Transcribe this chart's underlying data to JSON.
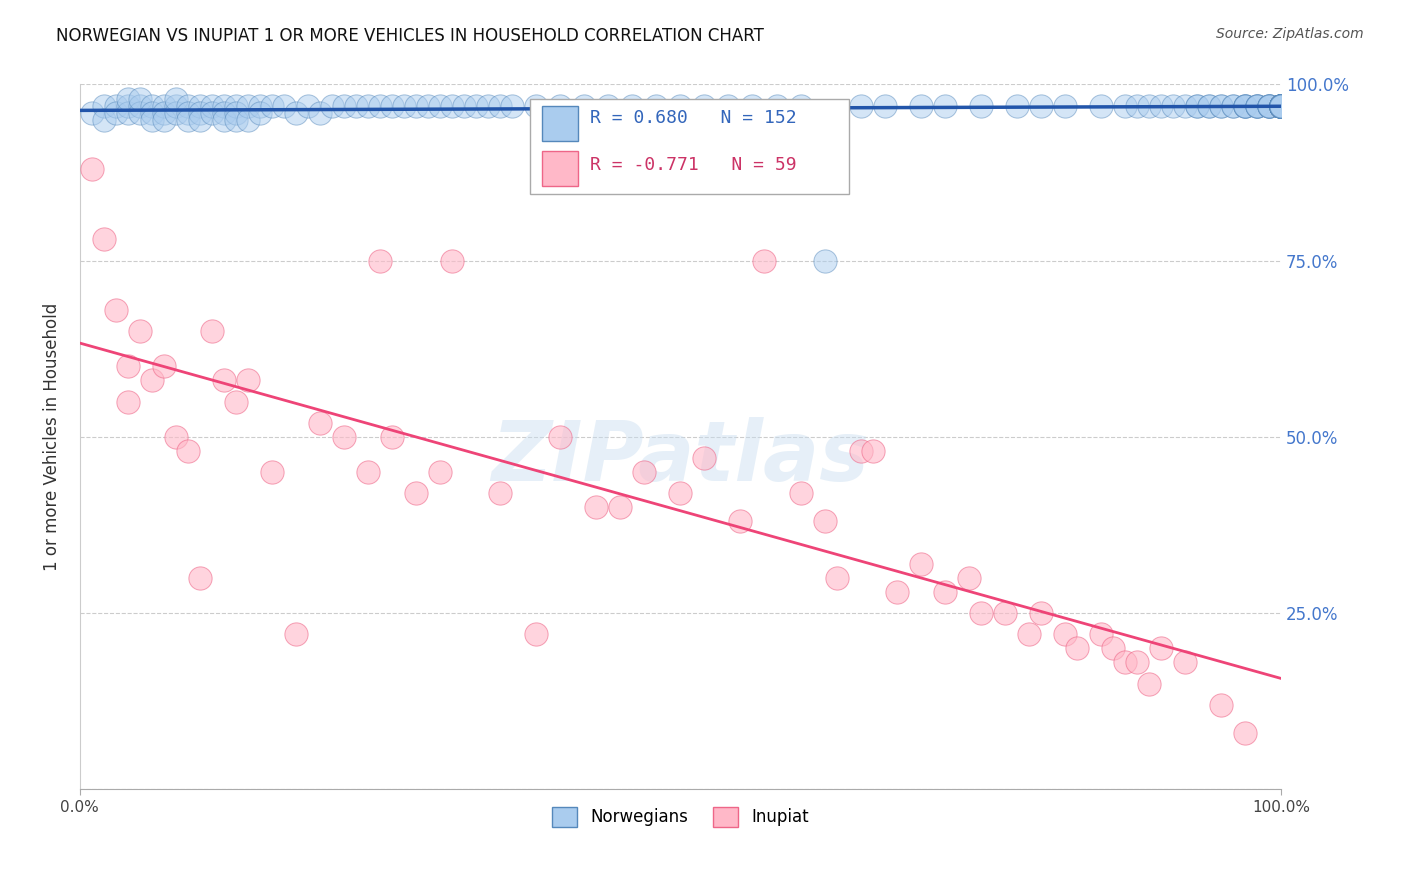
{
  "title": "NORWEGIAN VS INUPIAT 1 OR MORE VEHICLES IN HOUSEHOLD CORRELATION CHART",
  "source": "Source: ZipAtlas.com",
  "ylabel": "1 or more Vehicles in Household",
  "xlim": [
    0.0,
    1.0
  ],
  "ylim": [
    0.0,
    1.0
  ],
  "norwegian_R": 0.68,
  "norwegian_N": 152,
  "inupiat_R": -0.771,
  "inupiat_N": 59,
  "norwegian_color": "#aaccee",
  "norwegian_edge_color": "#5588bb",
  "inupiat_color": "#ffb8c8",
  "inupiat_edge_color": "#ee6688",
  "norwegian_line_color": "#2255aa",
  "inupiat_line_color": "#ee4477",
  "watermark": "ZIPatlas",
  "background_color": "#ffffff",
  "grid_color": "#cccccc",
  "norwegian_scatter_x": [
    0.01,
    0.02,
    0.02,
    0.03,
    0.03,
    0.04,
    0.04,
    0.04,
    0.05,
    0.05,
    0.05,
    0.06,
    0.06,
    0.06,
    0.07,
    0.07,
    0.07,
    0.08,
    0.08,
    0.08,
    0.09,
    0.09,
    0.09,
    0.1,
    0.1,
    0.1,
    0.11,
    0.11,
    0.12,
    0.12,
    0.12,
    0.13,
    0.13,
    0.13,
    0.14,
    0.14,
    0.15,
    0.15,
    0.16,
    0.17,
    0.18,
    0.19,
    0.2,
    0.21,
    0.22,
    0.23,
    0.24,
    0.25,
    0.26,
    0.27,
    0.28,
    0.29,
    0.3,
    0.31,
    0.32,
    0.33,
    0.34,
    0.35,
    0.36,
    0.38,
    0.4,
    0.42,
    0.44,
    0.46,
    0.48,
    0.5,
    0.52,
    0.54,
    0.56,
    0.58,
    0.6,
    0.62,
    0.65,
    0.67,
    0.7,
    0.72,
    0.75,
    0.78,
    0.8,
    0.82,
    0.85,
    0.87,
    0.88,
    0.89,
    0.9,
    0.91,
    0.92,
    0.93,
    0.93,
    0.94,
    0.94,
    0.95,
    0.95,
    0.96,
    0.96,
    0.97,
    0.97,
    0.97,
    0.97,
    0.98,
    0.98,
    0.98,
    0.98,
    0.99,
    0.99,
    0.99,
    0.99,
    0.99,
    1.0,
    1.0,
    1.0,
    1.0,
    1.0,
    1.0,
    1.0,
    1.0,
    1.0,
    1.0,
    1.0,
    1.0,
    1.0,
    1.0,
    1.0,
    1.0,
    1.0,
    1.0,
    1.0,
    1.0,
    1.0,
    1.0,
    1.0,
    1.0,
    1.0,
    1.0,
    1.0,
    1.0,
    1.0,
    1.0,
    1.0,
    1.0,
    1.0,
    1.0,
    1.0,
    1.0,
    1.0,
    1.0,
    1.0,
    1.0,
    1.0,
    1.0,
    1.0,
    1.0
  ],
  "norwegian_scatter_y": [
    0.96,
    0.97,
    0.95,
    0.97,
    0.96,
    0.97,
    0.96,
    0.98,
    0.97,
    0.96,
    0.98,
    0.97,
    0.96,
    0.95,
    0.97,
    0.96,
    0.95,
    0.97,
    0.96,
    0.98,
    0.97,
    0.96,
    0.95,
    0.97,
    0.96,
    0.95,
    0.97,
    0.96,
    0.97,
    0.96,
    0.95,
    0.97,
    0.96,
    0.95,
    0.97,
    0.95,
    0.97,
    0.96,
    0.97,
    0.97,
    0.96,
    0.97,
    0.96,
    0.97,
    0.97,
    0.97,
    0.97,
    0.97,
    0.97,
    0.97,
    0.97,
    0.97,
    0.97,
    0.97,
    0.97,
    0.97,
    0.97,
    0.97,
    0.97,
    0.97,
    0.97,
    0.97,
    0.97,
    0.97,
    0.97,
    0.97,
    0.97,
    0.97,
    0.97,
    0.97,
    0.97,
    0.75,
    0.97,
    0.97,
    0.97,
    0.97,
    0.97,
    0.97,
    0.97,
    0.97,
    0.97,
    0.97,
    0.97,
    0.97,
    0.97,
    0.97,
    0.97,
    0.97,
    0.97,
    0.97,
    0.97,
    0.97,
    0.97,
    0.97,
    0.97,
    0.97,
    0.97,
    0.97,
    0.97,
    0.97,
    0.97,
    0.97,
    0.97,
    0.97,
    0.97,
    0.97,
    0.97,
    0.97,
    0.97,
    0.97,
    0.97,
    0.97,
    0.97,
    0.97,
    0.97,
    0.97,
    0.97,
    0.97,
    0.97,
    0.97,
    0.97,
    0.97,
    0.97,
    0.97,
    0.97,
    0.97,
    0.97,
    0.97,
    0.97,
    0.97,
    0.97,
    0.97,
    0.97,
    0.97,
    0.97,
    0.97,
    0.97,
    0.97,
    0.97,
    0.97,
    0.97,
    0.97,
    0.97,
    0.97,
    0.97,
    0.97,
    0.97,
    0.97,
    0.97,
    0.97,
    0.97,
    0.97
  ],
  "inupiat_scatter_x": [
    0.01,
    0.02,
    0.03,
    0.04,
    0.04,
    0.05,
    0.06,
    0.07,
    0.08,
    0.09,
    0.1,
    0.11,
    0.12,
    0.13,
    0.14,
    0.16,
    0.18,
    0.2,
    0.22,
    0.24,
    0.25,
    0.26,
    0.28,
    0.3,
    0.31,
    0.35,
    0.38,
    0.4,
    0.43,
    0.45,
    0.47,
    0.5,
    0.52,
    0.55,
    0.57,
    0.6,
    0.62,
    0.63,
    0.65,
    0.66,
    0.68,
    0.7,
    0.72,
    0.74,
    0.75,
    0.77,
    0.79,
    0.8,
    0.82,
    0.83,
    0.85,
    0.86,
    0.87,
    0.88,
    0.89,
    0.9,
    0.92,
    0.95,
    0.97
  ],
  "inupiat_scatter_y": [
    0.88,
    0.78,
    0.68,
    0.6,
    0.55,
    0.65,
    0.58,
    0.6,
    0.5,
    0.48,
    0.3,
    0.65,
    0.58,
    0.55,
    0.58,
    0.45,
    0.22,
    0.52,
    0.5,
    0.45,
    0.75,
    0.5,
    0.42,
    0.45,
    0.75,
    0.42,
    0.22,
    0.5,
    0.4,
    0.4,
    0.45,
    0.42,
    0.47,
    0.38,
    0.75,
    0.42,
    0.38,
    0.3,
    0.48,
    0.48,
    0.28,
    0.32,
    0.28,
    0.3,
    0.25,
    0.25,
    0.22,
    0.25,
    0.22,
    0.2,
    0.22,
    0.2,
    0.18,
    0.18,
    0.15,
    0.2,
    0.18,
    0.12,
    0.08
  ]
}
